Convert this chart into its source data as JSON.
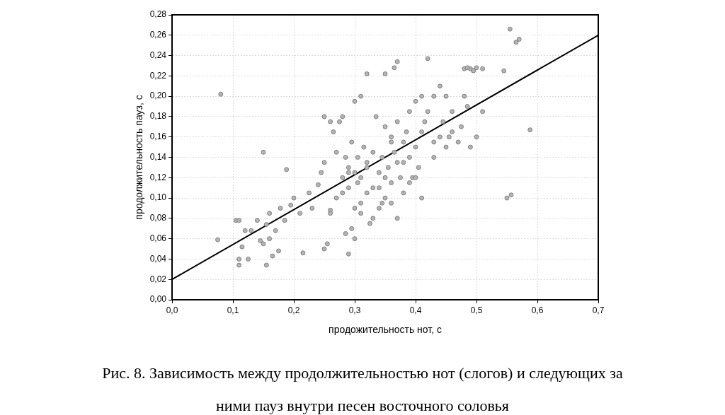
{
  "chart_data": {
    "type": "scatter",
    "title": "Рис. 8. Зависимость между продолжительностью нот (слогов) и следующих за ними пауз внутри песен восточного соловья",
    "xlabel": "продожительность нот, с",
    "ylabel": "продолжительность пауз, с",
    "xlim": [
      0,
      0.7
    ],
    "ylim": [
      0,
      0.28
    ],
    "xticks": [
      {
        "value": 0,
        "label": "0,0"
      },
      {
        "value": 0.1,
        "label": "0,1"
      },
      {
        "value": 0.2,
        "label": "0,2"
      },
      {
        "value": 0.3,
        "label": "0,3"
      },
      {
        "value": 0.4,
        "label": "0,4"
      },
      {
        "value": 0.5,
        "label": "0,5"
      },
      {
        "value": 0.6,
        "label": "0,6"
      },
      {
        "value": 0.7,
        "label": "0,7"
      }
    ],
    "yticks": [
      {
        "value": 0,
        "label": "0,00"
      },
      {
        "value": 0.02,
        "label": "0,02"
      },
      {
        "value": 0.04,
        "label": "0,04"
      },
      {
        "value": 0.06,
        "label": "0,06"
      },
      {
        "value": 0.08,
        "label": "0,08"
      },
      {
        "value": 0.1,
        "label": "0,10"
      },
      {
        "value": 0.12,
        "label": "0,12"
      },
      {
        "value": 0.14,
        "label": "0,14"
      },
      {
        "value": 0.16,
        "label": "0,16"
      },
      {
        "value": 0.18,
        "label": "0,18"
      },
      {
        "value": 0.2,
        "label": "0,20"
      },
      {
        "value": 0.22,
        "label": "0,22"
      },
      {
        "value": 0.24,
        "label": "0,24"
      },
      {
        "value": 0.26,
        "label": "0,26"
      },
      {
        "value": 0.28,
        "label": "0,28"
      }
    ],
    "grid": true,
    "legend": false,
    "series": [
      {
        "marker": "circle",
        "color": "#b4b4b4",
        "x": [
          0.075,
          0.08,
          0.15,
          0.188,
          0.555,
          0.565,
          0.57,
          0.588,
          0.55,
          0.557,
          0.545,
          0.51,
          0.5,
          0.49,
          0.48,
          0.485,
          0.495,
          0.42,
          0.37,
          0.365,
          0.32,
          0.35,
          0.105,
          0.11,
          0.11,
          0.11,
          0.115,
          0.12,
          0.125,
          0.13,
          0.14,
          0.145,
          0.15,
          0.155,
          0.155,
          0.16,
          0.16,
          0.165,
          0.17,
          0.175,
          0.178,
          0.185,
          0.195,
          0.2,
          0.21,
          0.215,
          0.225,
          0.23,
          0.245,
          0.24,
          0.25,
          0.255,
          0.25,
          0.25,
          0.26,
          0.26,
          0.265,
          0.27,
          0.275,
          0.28,
          0.285,
          0.29,
          0.295,
          0.3,
          0.31,
          0.335,
          0.27,
          0.28,
          0.285,
          0.29,
          0.29,
          0.295,
          0.3,
          0.3,
          0.305,
          0.31,
          0.31,
          0.315,
          0.32,
          0.32,
          0.325,
          0.33,
          0.33,
          0.34,
          0.34,
          0.345,
          0.35,
          0.35,
          0.355,
          0.36,
          0.36,
          0.365,
          0.37,
          0.37,
          0.375,
          0.38,
          0.38,
          0.385,
          0.39,
          0.39,
          0.395,
          0.4,
          0.4,
          0.405,
          0.41,
          0.41,
          0.415,
          0.42,
          0.43,
          0.43,
          0.44,
          0.44,
          0.445,
          0.45,
          0.45,
          0.455,
          0.46,
          0.47,
          0.475,
          0.48,
          0.485,
          0.49,
          0.5,
          0.51,
          0.41,
          0.39,
          0.37,
          0.36,
          0.34,
          0.33,
          0.3,
          0.31,
          0.28,
          0.26,
          0.35,
          0.38,
          0.4,
          0.43,
          0.46,
          0.29,
          0.305,
          0.32,
          0.345,
          0.36
        ],
        "values": [
          0.059,
          0.202,
          0.145,
          0.128,
          0.266,
          0.253,
          0.256,
          0.167,
          0.1,
          0.103,
          0.225,
          0.227,
          0.228,
          0.227,
          0.227,
          0.228,
          0.225,
          0.237,
          0.234,
          0.228,
          0.222,
          0.222,
          0.078,
          0.078,
          0.04,
          0.034,
          0.052,
          0.068,
          0.04,
          0.068,
          0.078,
          0.058,
          0.055,
          0.034,
          0.074,
          0.06,
          0.085,
          0.043,
          0.068,
          0.048,
          0.09,
          0.078,
          0.093,
          0.1,
          0.085,
          0.046,
          0.105,
          0.09,
          0.125,
          0.113,
          0.135,
          0.055,
          0.05,
          0.18,
          0.175,
          0.088,
          0.165,
          0.145,
          0.175,
          0.18,
          0.065,
          0.045,
          0.07,
          0.195,
          0.2,
          0.18,
          0.1,
          0.12,
          0.14,
          0.13,
          0.11,
          0.155,
          0.125,
          0.09,
          0.14,
          0.085,
          0.12,
          0.15,
          0.105,
          0.13,
          0.075,
          0.145,
          0.11,
          0.125,
          0.09,
          0.14,
          0.17,
          0.1,
          0.13,
          0.16,
          0.115,
          0.145,
          0.135,
          0.175,
          0.12,
          0.155,
          0.105,
          0.165,
          0.14,
          0.185,
          0.12,
          0.15,
          0.195,
          0.13,
          0.2,
          0.165,
          0.175,
          0.185,
          0.14,
          0.2,
          0.16,
          0.21,
          0.175,
          0.15,
          0.2,
          0.16,
          0.185,
          0.155,
          0.17,
          0.2,
          0.19,
          0.15,
          0.16,
          0.185,
          0.1,
          0.115,
          0.08,
          0.095,
          0.11,
          0.08,
          0.06,
          0.095,
          0.105,
          0.085,
          0.12,
          0.135,
          0.12,
          0.155,
          0.165,
          0.125,
          0.115,
          0.135,
          0.095,
          0.155
        ]
      },
      {
        "type": "line",
        "marker": "none",
        "color": "#000000",
        "x": [
          0,
          0.7
        ],
        "values": [
          0.02,
          0.26
        ]
      }
    ]
  }
}
